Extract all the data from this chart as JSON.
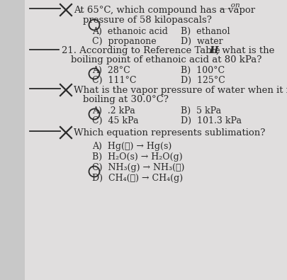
{
  "bg_color": "#c8c8c8",
  "paper_color": "#e0dede",
  "text_color": "#2a2a2a",
  "font_size_q": 9.5,
  "font_size_ans": 9.0,
  "q20_text1": "At 65°C, which compound has a vapor",
  "q20_text2": "pressure of 58 kilopascals?",
  "q20_A": "A)  ethanoic acid",
  "q20_B": "B)  ethanol",
  "q20_C": "C)  propanone",
  "q20_D": "D)  water",
  "q21_text1": "21. According to Reference Table ",
  "q21_text1b": "H",
  "q21_text1c": ", what is the",
  "q21_text2": "boiling point of ethanoic acid at 80 kPa?",
  "q21_A": "A)  28°C",
  "q21_B": "B)  100°C",
  "q21_C": "C)  111°C",
  "q21_D": "D)  125°C",
  "q22_text1": "What is the vapor pressure of water when it is",
  "q22_text2": "boiling at 30.0°C?",
  "q22_A": "A)  .2 kPa",
  "q22_B": "B)  5 kPa",
  "q22_C": "C)  45 kPa",
  "q22_D": "D)  101.3 kPa",
  "q23_text1": "Which equation represents sublimation?",
  "q23_A": "A)  Hg(ℓ) → Hg(s)",
  "q23_B": "B)  H₂O(s) → H₂O(g)",
  "q23_C": "C)  NH₃(g) → NH₃(ℓ)",
  "q23_D": "D)  CH₄(ℓ) → CH₄(g)"
}
